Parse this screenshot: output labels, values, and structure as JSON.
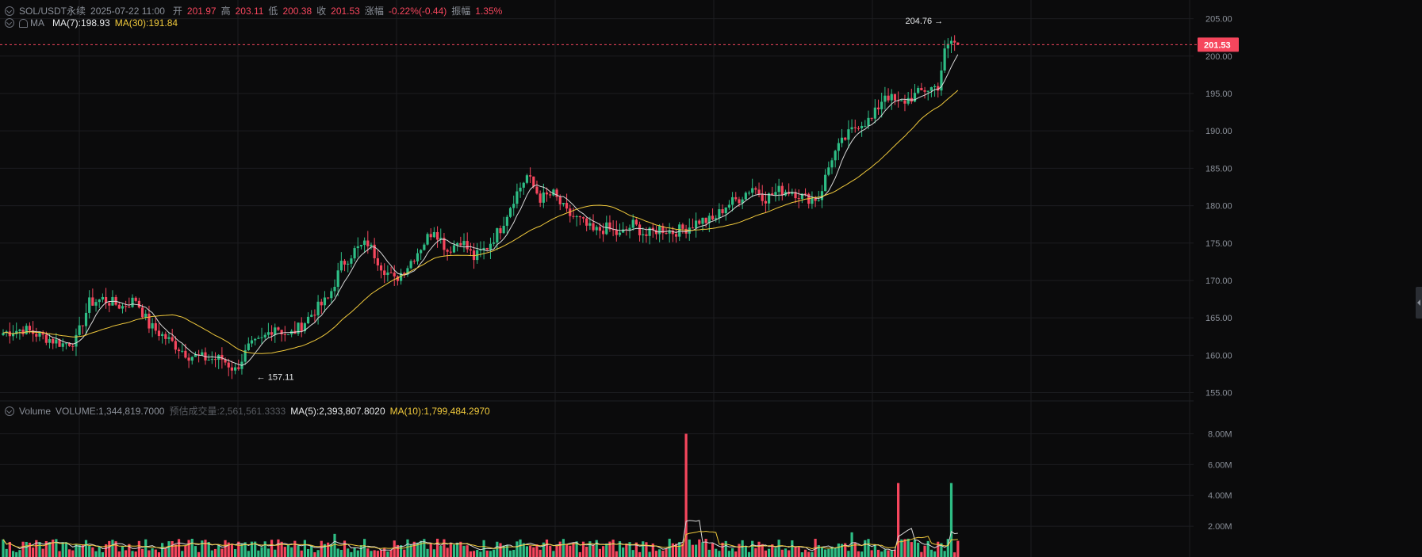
{
  "header": {
    "symbol": "SOL/USDT永续",
    "datetime": "2025-07-22 11:00",
    "open_label": "开",
    "open": "201.97",
    "high_label": "高",
    "high": "203.11",
    "low_label": "低",
    "low": "200.38",
    "close_label": "收",
    "close": "201.53",
    "change_label": "涨幅",
    "change": "-0.22%(-0.44)",
    "amplitude_label": "振幅",
    "amplitude": "1.35%"
  },
  "ma_legend": {
    "label": "MA",
    "ma7": "MA(7):198.93",
    "ma30": "MA(30):191.84"
  },
  "volume_legend": {
    "label": "Volume",
    "volume": "VOLUME:1,344,819.7000",
    "estimated": "预估成交量:2,561,561.3333",
    "ma5": "MA(5):2,393,807.8020",
    "ma10": "MA(10):1,799,484.2970"
  },
  "colors": {
    "up": "#2ebd85",
    "down": "#f6465d",
    "ma7": "#d9d9d9",
    "ma30": "#f0c93c",
    "grid": "#1c1d20",
    "bg": "#0b0b0c"
  },
  "chart_data": {
    "type": "candlestick",
    "price_axis": {
      "ticks": [
        "205.00",
        "200.00",
        "195.00",
        "190.00",
        "185.00",
        "180.00",
        "175.00",
        "170.00",
        "165.00",
        "160.00",
        "155.00"
      ],
      "range": [
        154,
        207.5
      ]
    },
    "volume_axis": {
      "ticks": [
        "8.00M",
        "6.00M",
        "4.00M",
        "2.00M"
      ],
      "range": [
        0,
        9
      ]
    },
    "last_price": "201.53",
    "max_annotation": "204.76",
    "min_annotation": "157.11",
    "key_points": [
      [
        0,
        163
      ],
      [
        6,
        163.5
      ],
      [
        12,
        162.5
      ],
      [
        18,
        161.5
      ],
      [
        22,
        162
      ],
      [
        26,
        167
      ],
      [
        30,
        167.5
      ],
      [
        36,
        166.5
      ],
      [
        40,
        167.5
      ],
      [
        44,
        164
      ],
      [
        50,
        162
      ],
      [
        56,
        160
      ],
      [
        62,
        159.5
      ],
      [
        66,
        159.5
      ],
      [
        70,
        158
      ],
      [
        74,
        161
      ],
      [
        78,
        162
      ],
      [
        82,
        164
      ],
      [
        86,
        162.5
      ],
      [
        90,
        164
      ],
      [
        94,
        166
      ],
      [
        98,
        167.5
      ],
      [
        102,
        172
      ],
      [
        106,
        174
      ],
      [
        110,
        175
      ],
      [
        114,
        172
      ],
      [
        118,
        170
      ],
      [
        122,
        172
      ],
      [
        126,
        174.5
      ],
      [
        130,
        177
      ],
      [
        134,
        174
      ],
      [
        138,
        175.5
      ],
      [
        142,
        173
      ],
      [
        146,
        174.5
      ],
      [
        150,
        177
      ],
      [
        154,
        181
      ],
      [
        158,
        184
      ],
      [
        162,
        181
      ],
      [
        166,
        181.5
      ],
      [
        170,
        179
      ],
      [
        174,
        178
      ],
      [
        178,
        176.5
      ],
      [
        182,
        177
      ],
      [
        186,
        176
      ],
      [
        190,
        177.5
      ],
      [
        194,
        176
      ],
      [
        198,
        177
      ],
      [
        202,
        176.5
      ],
      [
        206,
        177
      ],
      [
        210,
        178
      ],
      [
        214,
        178
      ],
      [
        218,
        180
      ],
      [
        222,
        181
      ],
      [
        226,
        182.5
      ],
      [
        230,
        181
      ],
      [
        234,
        182
      ],
      [
        238,
        182
      ],
      [
        242,
        181
      ],
      [
        246,
        181
      ],
      [
        250,
        186.5
      ],
      [
        254,
        189
      ],
      [
        258,
        191
      ],
      [
        262,
        191.5
      ],
      [
        266,
        195
      ],
      [
        270,
        193.5
      ],
      [
        274,
        194.5
      ],
      [
        278,
        195.5
      ],
      [
        282,
        196
      ],
      [
        284,
        200.5
      ],
      [
        286,
        202
      ],
      [
        288,
        201.53
      ]
    ],
    "volume_visible_spikes_millions": [
      {
        "at": 96,
        "value": 0.8
      },
      {
        "at": 100,
        "value": 1.5
      },
      {
        "at": 140,
        "value": 0.2
      },
      {
        "at": 150,
        "value": 0.9
      },
      {
        "at": 158,
        "value": 0.7
      },
      {
        "at": 170,
        "value": 0.3
      },
      {
        "at": 206,
        "value": 8.0
      },
      {
        "at": 256,
        "value": 1.6
      },
      {
        "at": 270,
        "value": 4.8
      },
      {
        "at": 286,
        "value": 4.8
      }
    ]
  }
}
